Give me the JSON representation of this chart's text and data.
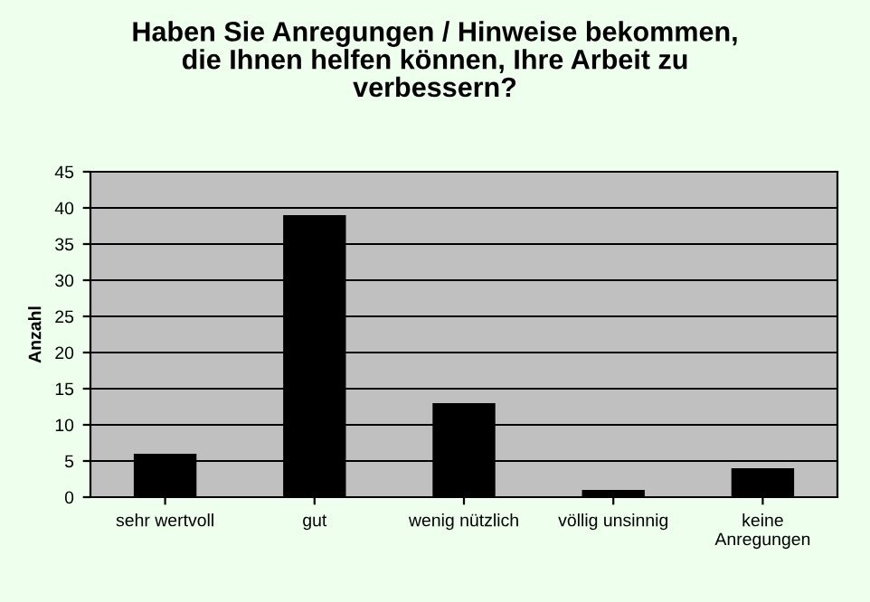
{
  "chart_data": {
    "type": "bar",
    "title": "Haben Sie Anregungen / Hinweise bekommen,\ndie Ihnen helfen können, Ihre Arbeit zu\nverbessern?",
    "ylabel": "Anzahl",
    "categories": [
      "sehr wertvoll",
      "gut",
      "wenig nützlich",
      "völlig unsinnig",
      "keine\nAnregungen"
    ],
    "values": [
      6,
      39,
      13,
      1,
      4
    ],
    "color": "#000000",
    "ylim": [
      0,
      45
    ],
    "yticks": [
      0,
      5,
      10,
      15,
      20,
      25,
      30,
      35,
      40,
      45
    ],
    "grid": "y",
    "legend": false
  }
}
